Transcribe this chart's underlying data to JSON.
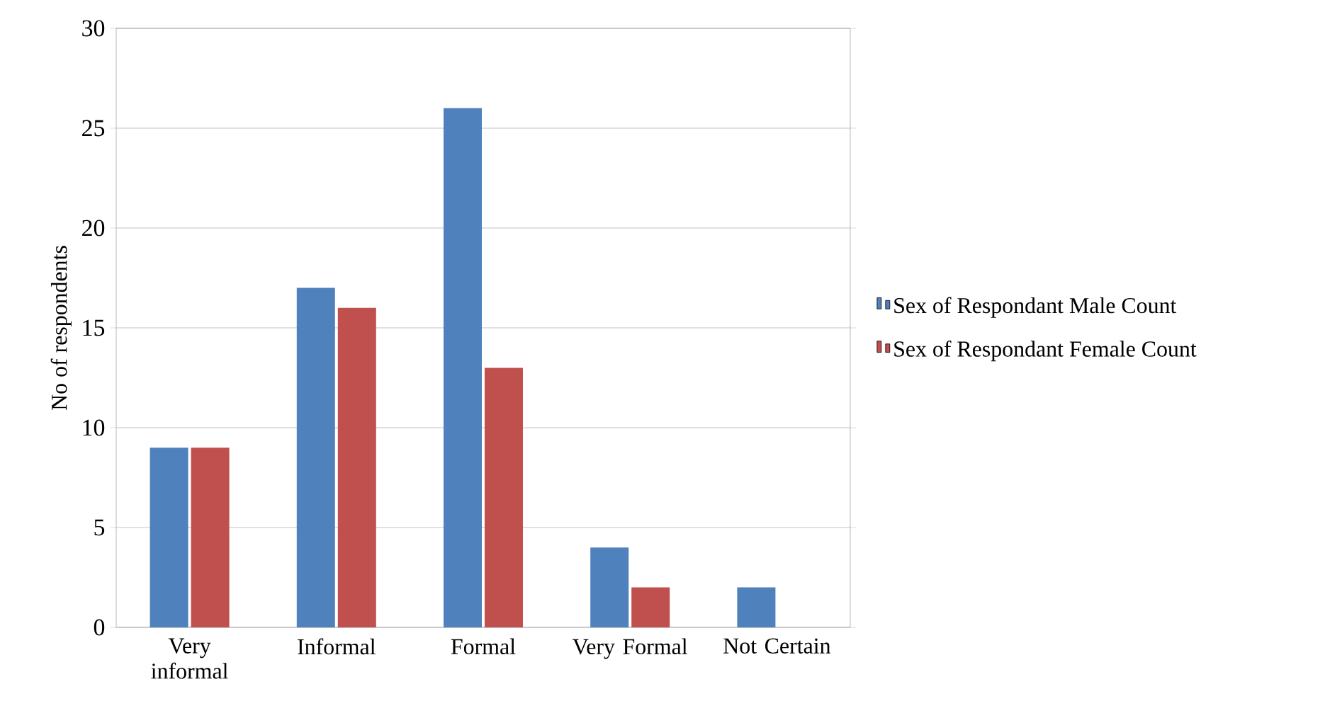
{
  "chart_data": {
    "type": "bar",
    "ylabel": "No of respondents",
    "categories": [
      "Very informal",
      "Informal",
      "Formal",
      "Very Formal",
      "Not Certain"
    ],
    "series": [
      {
        "name": "Sex of Respondant Male Count",
        "color": "#4f81bd",
        "values": [
          9,
          17,
          26,
          4,
          2
        ]
      },
      {
        "name": "Sex of Respondant Female Count",
        "color": "#c0504d",
        "values": [
          9,
          16,
          13,
          2,
          null
        ]
      }
    ],
    "ylim": [
      0,
      30
    ],
    "yticks": [
      0,
      5,
      10,
      15,
      20,
      25,
      30
    ],
    "grid": "y",
    "legend": "right"
  }
}
